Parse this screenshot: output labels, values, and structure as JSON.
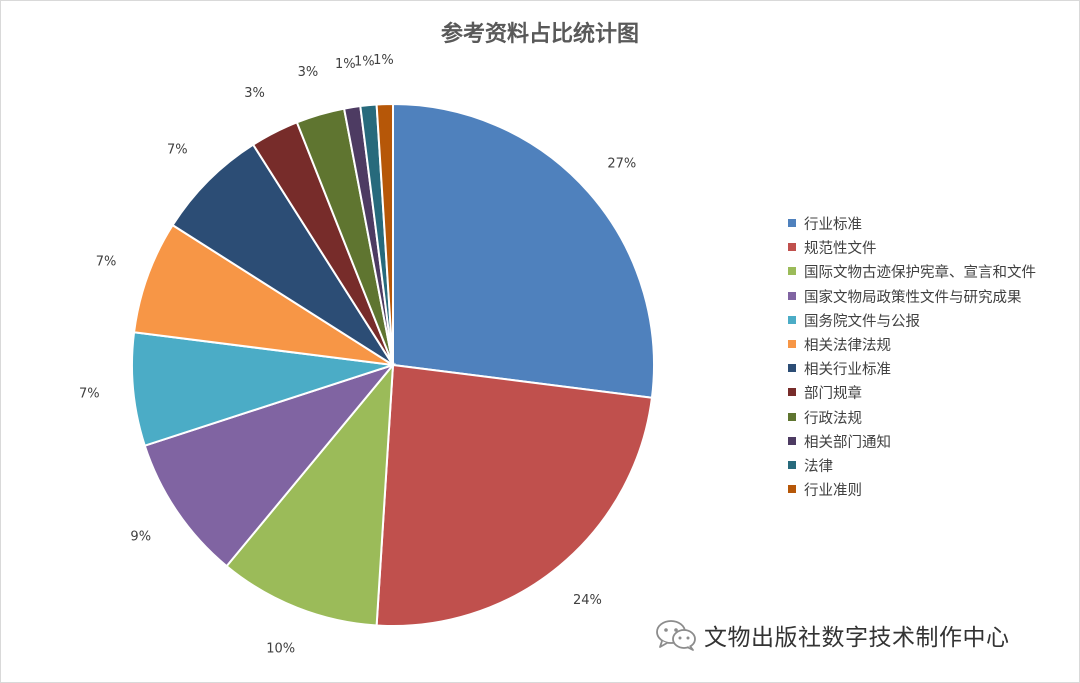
{
  "chart_data": {
    "type": "pie",
    "title": "参考资料占比统计图",
    "legend": "right",
    "series": [
      {
        "name": "行业标准",
        "value": 27,
        "label": "27%",
        "color": "#4f81bd"
      },
      {
        "name": "规范性文件",
        "value": 24,
        "label": "24%",
        "color": "#c0504d"
      },
      {
        "name": "国际文物古迹保护宪章、宣言和文件",
        "value": 10,
        "label": "10%",
        "color": "#9bbb59"
      },
      {
        "name": "国家文物局政策性文件与研究成果",
        "value": 9,
        "label": "9%",
        "color": "#8064a2"
      },
      {
        "name": "国务院文件与公报",
        "value": 7,
        "label": "7%",
        "color": "#4bacc6"
      },
      {
        "name": "相关法律法规",
        "value": 7,
        "label": "7%",
        "color": "#f79646"
      },
      {
        "name": "相关行业标准",
        "value": 7,
        "label": "7%",
        "color": "#2c4d75"
      },
      {
        "name": "部门规章",
        "value": 3,
        "label": "3%",
        "color": "#772c2a"
      },
      {
        "name": "行政法规",
        "value": 3,
        "label": "3%",
        "color": "#5f7530"
      },
      {
        "name": "相关部门通知",
        "value": 1,
        "label": "1%",
        "color": "#4d3b62"
      },
      {
        "name": "法律",
        "value": 1,
        "label": "1%",
        "color": "#276a7c"
      },
      {
        "name": "行业准则",
        "value": 1,
        "label": "1%",
        "color": "#b65708"
      }
    ]
  },
  "watermark": {
    "text": "文物出版社数字技术制作中心",
    "icon": "wechat-icon"
  }
}
